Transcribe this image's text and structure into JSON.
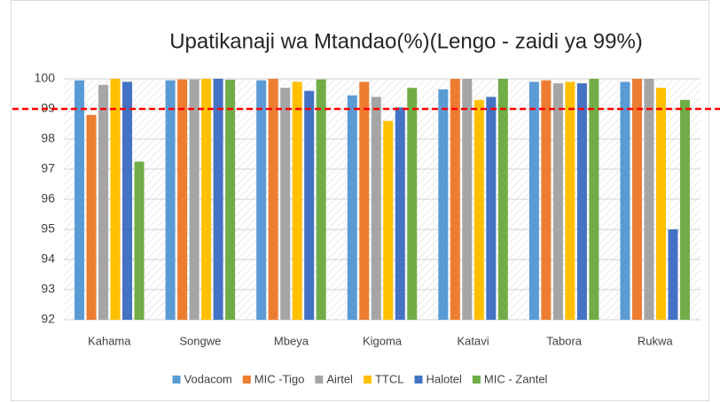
{
  "chart_data": {
    "type": "bar",
    "title": "Upatikanaji wa Mtandao(%)(Lengo - zaidi ya 99%)",
    "categories": [
      "Kahama",
      "Songwe",
      "Mbeya",
      "Kigoma",
      "Katavi",
      "Tabora",
      "Rukwa"
    ],
    "series": [
      {
        "name": "Vodacom",
        "color": "#5b9bd5",
        "values": [
          99.95,
          99.95,
          99.95,
          99.45,
          99.65,
          99.9,
          99.9
        ]
      },
      {
        "name": "MIC -Tigo",
        "color": "#ed7d31",
        "values": [
          98.8,
          99.98,
          100,
          99.9,
          100,
          99.95,
          100
        ]
      },
      {
        "name": "Airtel",
        "color": "#a5a5a5",
        "values": [
          99.8,
          99.98,
          99.7,
          99.4,
          100,
          99.85,
          100
        ]
      },
      {
        "name": "TTCL",
        "color": "#ffc000",
        "values": [
          100,
          100,
          99.9,
          98.6,
          99.3,
          99.9,
          99.7
        ]
      },
      {
        "name": "Halotel",
        "color": "#4472c4",
        "values": [
          99.9,
          100,
          99.6,
          99.05,
          99.4,
          99.85,
          95.0
        ]
      },
      {
        "name": "MIC - Zantel",
        "color": "#70ad47",
        "values": [
          97.25,
          99.97,
          99.98,
          99.7,
          100,
          100,
          99.3
        ]
      }
    ],
    "ylim": [
      92,
      100
    ],
    "yticks": [
      92,
      93,
      94,
      95,
      96,
      97,
      98,
      99,
      100
    ],
    "grid": true,
    "reference_line": {
      "value": 99,
      "color": "#ff0000"
    },
    "legend": "bottom"
  }
}
